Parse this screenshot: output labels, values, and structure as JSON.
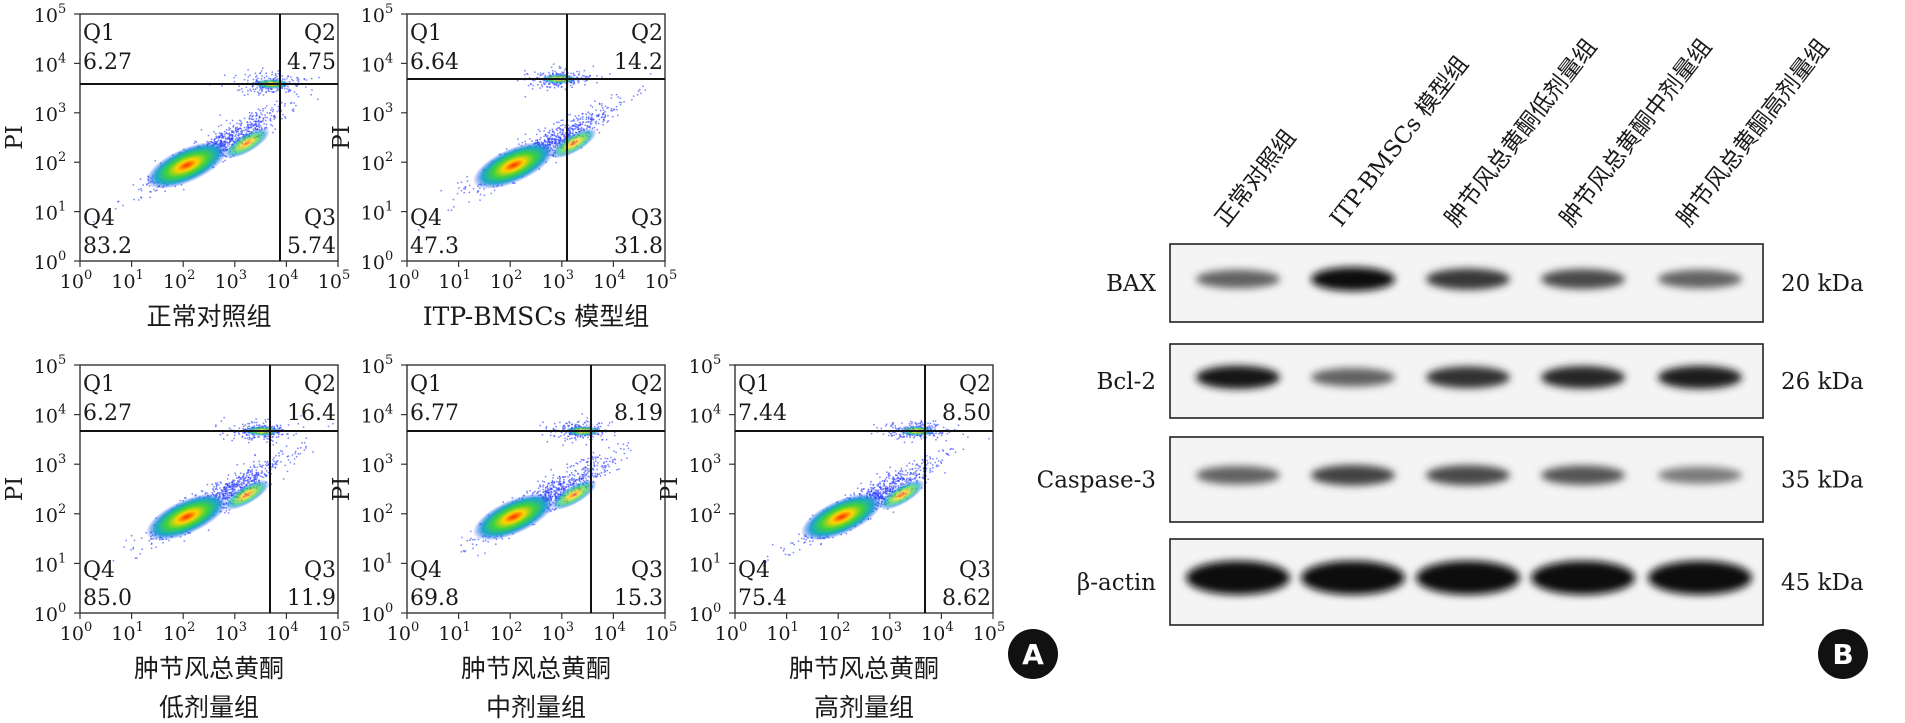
{
  "figure": {
    "panel_a_label": "A",
    "panel_b_label": "B"
  },
  "flow": {
    "y_axis_label": "PI",
    "x_ticks": [
      "10",
      "10",
      "10",
      "10",
      "10",
      "10"
    ],
    "x_tick_exponents": [
      "0",
      "1",
      "2",
      "3",
      "4",
      "5"
    ],
    "y_ticks": [
      "10",
      "10",
      "10",
      "10",
      "10",
      "10"
    ],
    "y_tick_exponents": [
      "0",
      "1",
      "2",
      "3",
      "4",
      "5"
    ],
    "quadrant_names": [
      "Q1",
      "Q2",
      "Q3",
      "Q4"
    ],
    "plots": [
      {
        "title_lines": [
          "正常对照组"
        ],
        "q1": "6.27",
        "q2": "4.75",
        "q3": "5.74",
        "q4": "83.2"
      },
      {
        "title_lines": [
          "ITP-BMSCs 模型组"
        ],
        "q1": "6.64",
        "q2": "14.2",
        "q3": "31.8",
        "q4": "47.3"
      },
      {
        "title_lines": [
          "肿节风总黄酮",
          "低剂量组"
        ],
        "q1": "6.27",
        "q2": "16.4",
        "q3": "11.9",
        "q4": "85.0"
      },
      {
        "title_lines": [
          "肿节风总黄酮",
          "中剂量组"
        ],
        "q1": "6.77",
        "q2": "8.19",
        "q3": "15.3",
        "q4": "69.8"
      },
      {
        "title_lines": [
          "肿节风总黄酮",
          "高剂量组"
        ],
        "q1": "7.44",
        "q2": "8.50",
        "q3": "8.62",
        "q4": "75.4"
      }
    ]
  },
  "western": {
    "lanes": [
      "正常对照组",
      "ITP-BMSCs 模型组",
      "肿节风总黄酮低剂量组",
      "肿节风总黄酮中剂量组",
      "肿节风总黄酮高剂量组"
    ],
    "rows": [
      {
        "protein": "BAX",
        "size": "20 kDa",
        "intensity": [
          0.55,
          1.0,
          0.78,
          0.68,
          0.55
        ]
      },
      {
        "protein": "Bcl-2",
        "size": "26 kDa",
        "intensity": [
          0.95,
          0.55,
          0.82,
          0.88,
          0.92
        ]
      },
      {
        "protein": "Caspase-3",
        "size": "35 kDa",
        "intensity": [
          0.55,
          0.72,
          0.68,
          0.62,
          0.42
        ]
      },
      {
        "protein": "β-actin",
        "size": "45 kDa",
        "intensity": [
          1.0,
          1.0,
          1.0,
          1.0,
          1.0
        ]
      }
    ]
  }
}
